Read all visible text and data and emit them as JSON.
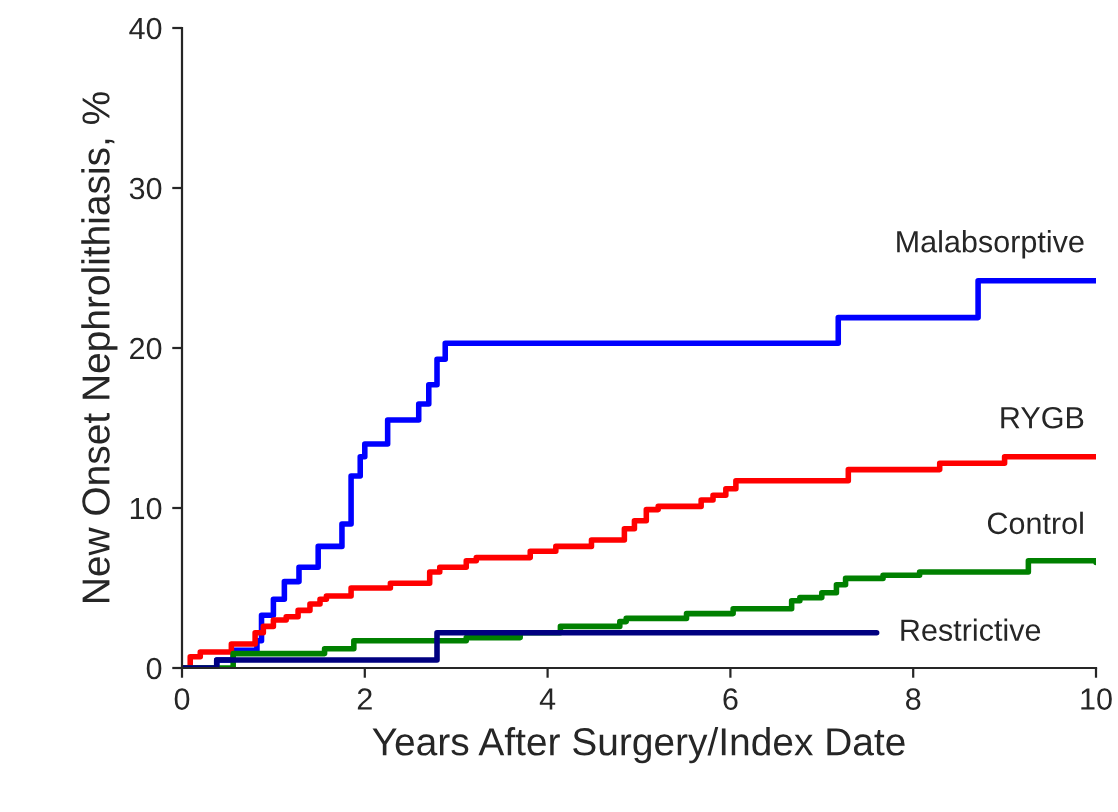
{
  "chart_data": {
    "type": "step",
    "xlabel": "Years After Surgery/Index Date",
    "ylabel": "New Onset Nephrolithiasis, %",
    "xlim": [
      0,
      10
    ],
    "ylim": [
      0,
      40
    ],
    "xticks": [
      0,
      2,
      4,
      6,
      8,
      10
    ],
    "yticks": [
      0,
      10,
      20,
      30,
      40
    ],
    "grid": false,
    "legend": false,
    "series": [
      {
        "name": "Malabsorptive",
        "color": "#0000ff",
        "x": [
          0,
          0.38,
          0.56,
          0.82,
          0.87,
          1.0,
          1.12,
          1.28,
          1.49,
          1.75,
          1.85,
          1.95,
          2.0,
          2.25,
          2.59,
          2.7,
          2.79,
          2.88,
          7.18,
          8.71,
          10
        ],
        "values": [
          0,
          0.5,
          1.1,
          1.7,
          3.3,
          4.3,
          5.4,
          6.3,
          7.6,
          9.0,
          12.0,
          13.2,
          14.0,
          15.5,
          16.5,
          17.7,
          19.3,
          20.3,
          21.9,
          24.2,
          24.2
        ]
      },
      {
        "name": "RYGB",
        "color": "#ff0000",
        "x": [
          0,
          0.09,
          0.2,
          0.54,
          0.8,
          0.89,
          1.0,
          1.14,
          1.27,
          1.4,
          1.51,
          1.58,
          1.85,
          2.28,
          2.71,
          2.82,
          3.11,
          3.22,
          3.81,
          4.09,
          4.48,
          4.84,
          4.95,
          5.08,
          5.21,
          5.68,
          5.81,
          5.95,
          6.06,
          7.29,
          8.29,
          9.0,
          10
        ],
        "values": [
          0,
          0.7,
          1.0,
          1.5,
          2.2,
          2.6,
          3.0,
          3.2,
          3.6,
          4.0,
          4.3,
          4.5,
          5.0,
          5.3,
          6.0,
          6.3,
          6.7,
          6.9,
          7.3,
          7.6,
          8.0,
          8.7,
          9.2,
          9.9,
          10.1,
          10.5,
          10.8,
          11.2,
          11.7,
          12.4,
          12.8,
          13.2,
          13.2
        ]
      },
      {
        "name": "Control",
        "color": "#008000",
        "x": [
          0,
          0.56,
          1.56,
          1.88,
          3.11,
          3.7,
          4.14,
          4.79,
          4.86,
          5.52,
          6.03,
          6.67,
          6.76,
          7.0,
          7.16,
          7.26,
          7.67,
          8.07,
          9.26,
          10
        ],
        "values": [
          0,
          0.9,
          1.2,
          1.7,
          1.9,
          2.2,
          2.6,
          2.9,
          3.1,
          3.4,
          3.7,
          4.2,
          4.4,
          4.7,
          5.2,
          5.6,
          5.8,
          6.0,
          6.7,
          6.6
        ]
      },
      {
        "name": "Restrictive",
        "color": "#000080",
        "x": [
          0,
          0.38,
          2.79,
          7.6
        ],
        "values": [
          0,
          0.5,
          2.2,
          2.2
        ]
      }
    ]
  }
}
